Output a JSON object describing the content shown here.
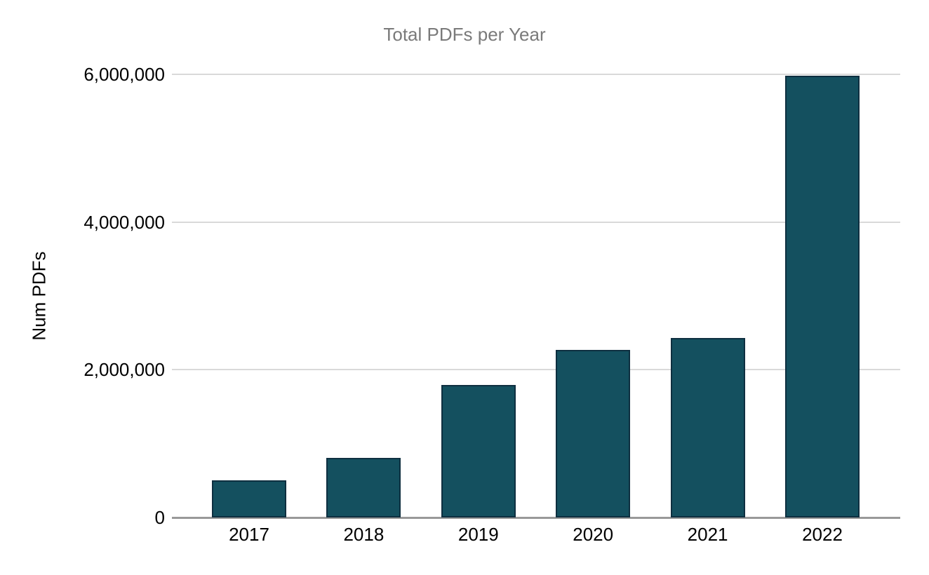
{
  "chart_data": {
    "type": "bar",
    "title": "Total PDFs per Year",
    "xlabel": "",
    "ylabel": "Num PDFs",
    "categories": [
      "2017",
      "2018",
      "2019",
      "2020",
      "2021",
      "2022"
    ],
    "values": [
      500000,
      810000,
      1790000,
      2270000,
      2430000,
      5980000
    ],
    "ylim": [
      0,
      6000000
    ],
    "yticks": [
      {
        "value": 0,
        "label": "0"
      },
      {
        "value": 2000000,
        "label": "2,000,000"
      },
      {
        "value": 4000000,
        "label": "4,000,000"
      },
      {
        "value": 6000000,
        "label": "6,000,000"
      }
    ],
    "grid": "horizontal",
    "legend": "none",
    "colors": {
      "bar_fill": "#14505f",
      "bar_border": "#0e2f40",
      "gridline": "#d9d9d9",
      "axis_line": "#999999",
      "title_text": "#7a7a7a",
      "tick_text": "#000000"
    }
  }
}
